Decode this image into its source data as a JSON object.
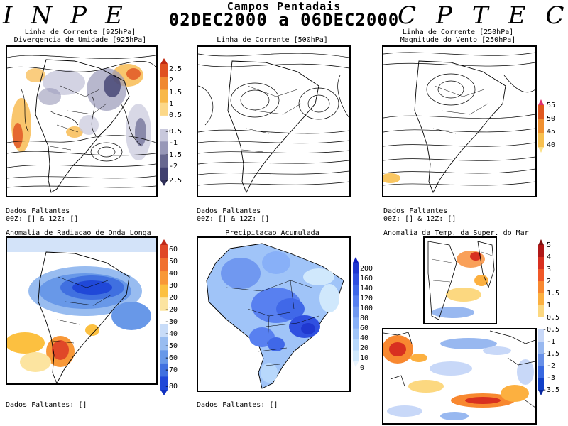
{
  "header": {
    "left_logo": "INPE",
    "right_logo": "CPTEC",
    "title": "Campos Pentadais",
    "date_range": "02DEC2000 a 06DEC2000"
  },
  "panels": {
    "p1": {
      "title_line1": "Linha de Corrente [925hPa]",
      "title_line2": "Divergencia de Umidade [925hPa]",
      "missing_line1": "Dados Faltantes",
      "missing_line2": "00Z: [] & 12Z: []",
      "colorbar": {
        "labels": [
          "2.5",
          "2",
          "1.5",
          "1",
          "0.5",
          "-0.5",
          "-1",
          "-1.5",
          "-2",
          "-2.5"
        ],
        "colors": [
          "#c02810",
          "#e05020",
          "#f08830",
          "#f8b848",
          "#fcd888",
          "#ffffff",
          "#c8c8dc",
          "#9898b8",
          "#686890",
          "#404070",
          "#303058"
        ]
      }
    },
    "p2": {
      "title_line1": "Linha de Corrente [500hPa]",
      "missing_line1": "Dados Faltantes",
      "missing_line2": "00Z: [] & 12Z: []"
    },
    "p3": {
      "title_line1": "Linha de Corrente [250hPa]",
      "title_line2": "Magnitude do Vento [250hPa]",
      "missing_line1": "Dados Faltantes",
      "missing_line2": "00Z: [] & 12Z: []",
      "colorbar": {
        "labels": [
          "55",
          "50",
          "45",
          "40"
        ],
        "colors": [
          "#e03070",
          "#e05820",
          "#f09030",
          "#f8c050",
          "#fce088"
        ]
      }
    },
    "p4": {
      "title_line1": "Anomalia de Radiacao de Onda Longa",
      "missing_line1": "Dados Faltantes: []",
      "colorbar": {
        "labels": [
          "60",
          "50",
          "40",
          "30",
          "20",
          "-20",
          "-30",
          "-40",
          "-50",
          "-60",
          "-70",
          "-80"
        ],
        "colors": [
          "#c02818",
          "#e04828",
          "#f07030",
          "#f89838",
          "#fcc040",
          "#fce4a0",
          "#ffffff",
          "#c8dcf8",
          "#98bcf0",
          "#6898e8",
          "#4070e0",
          "#2048d8",
          "#1030c0"
        ]
      }
    },
    "p5": {
      "title_line1": "Precipitacao Acumulada",
      "missing_line1": "Dados Faltantes: []",
      "colorbar": {
        "labels": [
          "200",
          "160",
          "140",
          "120",
          "100",
          "80",
          "60",
          "40",
          "20",
          "10",
          "0"
        ],
        "colors": [
          "#1020c0",
          "#2038d0",
          "#3050e0",
          "#4068e8",
          "#5880f0",
          "#7098f0",
          "#88b0f8",
          "#a0c4f8",
          "#b8d8fc",
          "#d0e8fc",
          "#e8f4ff"
        ]
      }
    },
    "p6": {
      "title_line1": "Anomalia da Temp. da Super. do Mar",
      "colorbar": {
        "labels": [
          "5",
          "4",
          "3",
          "2",
          "1.5",
          "1",
          "0.5",
          "-0.5",
          "-1",
          "-1.5",
          "-2",
          "-3",
          "-3.5"
        ],
        "colors": [
          "#801010",
          "#b01818",
          "#d83020",
          "#f05828",
          "#f88830",
          "#fcb040",
          "#fcd880",
          "#ffffff",
          "#c8d8f8",
          "#98b8f0",
          "#6890e8",
          "#3868e0",
          "#1040c8",
          "#0828a0"
        ]
      }
    }
  }
}
